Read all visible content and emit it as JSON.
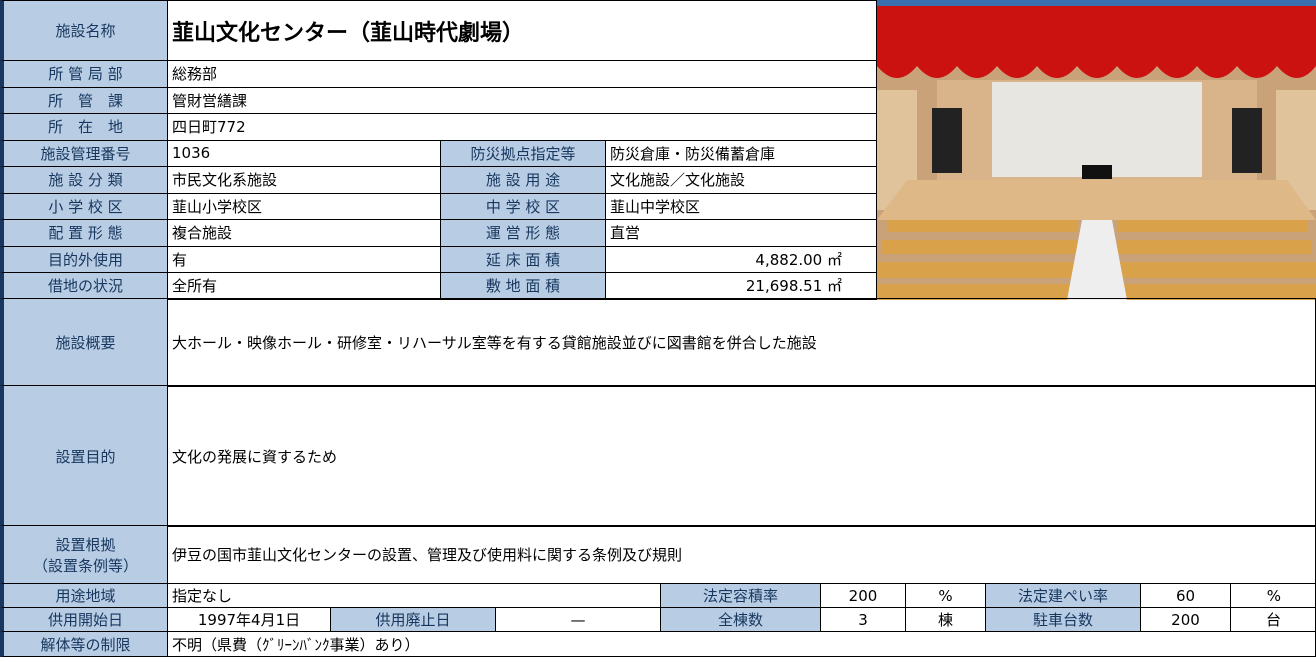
{
  "title": {
    "label": "施設名称",
    "value": "韮山文化センター（韮山時代劇場）"
  },
  "info": [
    [
      "所 管 局 部",
      "総務部"
    ],
    [
      "所　管　課",
      "管財営繕課"
    ],
    [
      "所　在　地",
      "四日町772"
    ],
    [
      "施設管理番号",
      "1036",
      "防災拠点指定等",
      "防災倉庫・防災備蓄倉庫"
    ],
    [
      "施 設 分 類",
      "市民文化系施設",
      "施 設 用 途",
      "文化施設／文化施設"
    ],
    [
      "小 学 校 区",
      "韮山小学校区",
      "中 学 校 区",
      "韮山中学校区"
    ],
    [
      "配 置 形 態",
      "複合施設",
      "運 営 形 態",
      "直営"
    ],
    [
      "目的外使用",
      "有",
      "延 床 面 積",
      "4,882.00 ㎡"
    ],
    [
      "借地の状況",
      "全所有",
      "敷 地 面 積",
      "21,698.51 ㎡"
    ]
  ],
  "overview": {
    "label": "施設概要",
    "text": "大ホール・映像ホール・研修室・リハーサル室等を有する貸館施設並びに図書館を併合した施設"
  },
  "purpose": {
    "label": "設置目的",
    "text": "文化の発展に資するため"
  },
  "basis": {
    "label": [
      "設置根拠",
      "（設置条例等）"
    ],
    "text": "伊豆の国市韮山文化センターの設置、管理及び使用料に関する条例及び規則"
  },
  "bottom": [
    [
      "用途地域",
      "指定なし",
      "法定容積率",
      "200",
      "%",
      "法定建ぺい率",
      "60",
      "%"
    ],
    [
      "供用開始日",
      "1997年4月1日",
      "供用廃止日",
      "—",
      "全棟数",
      "3",
      "棟",
      "駐車台数",
      "200",
      "台"
    ],
    [
      "解体等の制限",
      "不明（県費（ｸﾞﾘｰﾝﾊﾞﾝｸ事業）あり）"
    ]
  ]
}
